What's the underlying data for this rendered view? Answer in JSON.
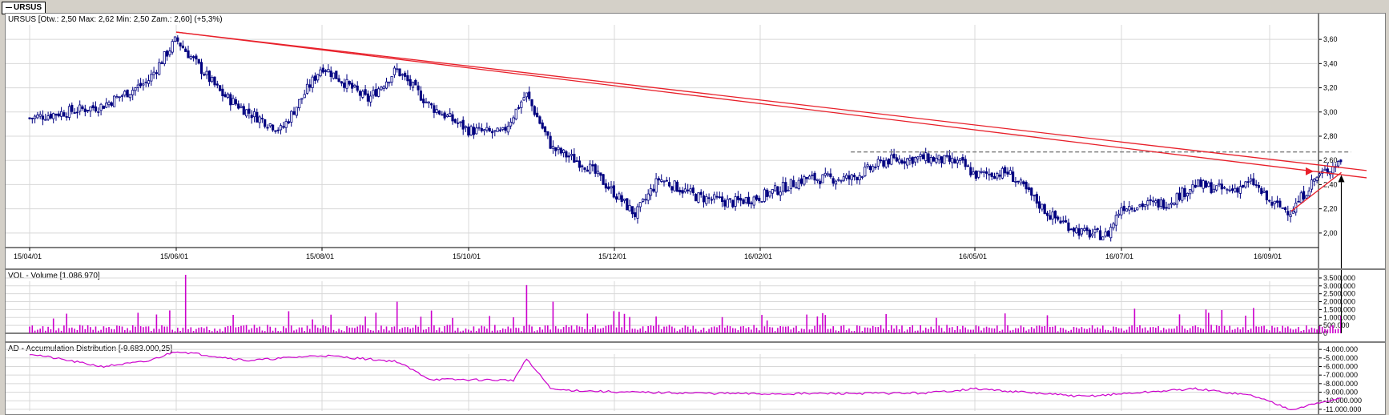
{
  "tab": {
    "label": "URSUS"
  },
  "colors": {
    "candle_up": "#ffffff",
    "candle_down": "#000080",
    "trendline": "#e8202a",
    "volume": "#cc00cc",
    "ad_line": "#cc00cc",
    "grid": "#d8d8d8",
    "dashed_resistance": "#808080",
    "arrow": "#000000"
  },
  "icons": {
    "red_arrow": "arrow-right-icon",
    "up_arrow": "arrow-up-icon"
  },
  "price_panel": {
    "header": "URSUS [Otw.: 2,50  Max: 2,62  Min: 2,50  Zam.: 2,60] (+5,3%)",
    "y_ticks": [
      "3,60",
      "3,40",
      "3,20",
      "3,00",
      "2,80",
      "2,60",
      "2,40",
      "2,20",
      "2,00"
    ]
  },
  "x_axis": {
    "ticks": [
      "15/04/01",
      "15/06/01",
      "15/08/01",
      "15/10/01",
      "15/12/01",
      "16/02/01",
      "16/05/01",
      "16/07/01",
      "16/09/01"
    ]
  },
  "volume_panel": {
    "header": "VOL - Volume [1.086.970]",
    "y_ticks": [
      "3.500.000",
      "3.000.000",
      "2.500.000",
      "2.000.000",
      "1.500.000",
      "1.000.000",
      "500.000",
      "0"
    ]
  },
  "ad_panel": {
    "header": "AD - Accumulation Distribution [-9.683.000,25]",
    "y_ticks": [
      "-4.000.000",
      "-5.000.000",
      "-6.000.000",
      "-7.000.000",
      "-8.000.000",
      "-9.000.000",
      "-10.000.000",
      "-11.000.000"
    ]
  },
  "chart_data": [
    {
      "type": "candlestick",
      "title": "URSUS",
      "ylim": [
        1.88,
        3.72
      ],
      "grid": true,
      "x_ticks": [
        "15/04/01",
        "15/06/01",
        "15/08/01",
        "15/10/01",
        "15/12/01",
        "16/02/01",
        "16/05/01",
        "16/07/01",
        "16/09/01"
      ],
      "close_series": [
        {
          "date": "15/04/01",
          "close": 2.95
        },
        {
          "date": "15/05/01",
          "close": 3.05
        },
        {
          "date": "15/05/20",
          "close": 3.25
        },
        {
          "date": "15/06/01",
          "close": 3.6
        },
        {
          "date": "15/06/20",
          "close": 3.15
        },
        {
          "date": "15/07/01",
          "close": 3.0
        },
        {
          "date": "15/07/15",
          "close": 2.85
        },
        {
          "date": "15/08/01",
          "close": 3.38
        },
        {
          "date": "15/08/20",
          "close": 3.1
        },
        {
          "date": "15/09/01",
          "close": 3.35
        },
        {
          "date": "15/09/15",
          "close": 3.05
        },
        {
          "date": "15/10/01",
          "close": 2.85
        },
        {
          "date": "15/10/15",
          "close": 2.82
        },
        {
          "date": "15/10/25",
          "close": 3.15
        },
        {
          "date": "15/11/05",
          "close": 2.7
        },
        {
          "date": "15/11/20",
          "close": 2.55
        },
        {
          "date": "15/12/05",
          "close": 2.25
        },
        {
          "date": "15/12/10",
          "close": 2.15
        },
        {
          "date": "15/12/20",
          "close": 2.45
        },
        {
          "date": "16/01/05",
          "close": 2.3
        },
        {
          "date": "16/01/20",
          "close": 2.25
        },
        {
          "date": "16/02/01",
          "close": 2.3
        },
        {
          "date": "16/02/20",
          "close": 2.45
        },
        {
          "date": "16/03/10",
          "close": 2.45
        },
        {
          "date": "16/03/25",
          "close": 2.6
        },
        {
          "date": "16/04/10",
          "close": 2.62
        },
        {
          "date": "16/04/25",
          "close": 2.58
        },
        {
          "date": "16/05/01",
          "close": 2.48
        },
        {
          "date": "16/05/15",
          "close": 2.5
        },
        {
          "date": "16/06/01",
          "close": 2.15
        },
        {
          "date": "16/06/15",
          "close": 2.0
        },
        {
          "date": "16/06/25",
          "close": 1.98
        },
        {
          "date": "16/07/01",
          "close": 2.22
        },
        {
          "date": "16/07/20",
          "close": 2.25
        },
        {
          "date": "16/08/01",
          "close": 2.4
        },
        {
          "date": "16/08/15",
          "close": 2.35
        },
        {
          "date": "16/08/25",
          "close": 2.42
        },
        {
          "date": "16/09/01",
          "close": 2.25
        },
        {
          "date": "16/09/10",
          "close": 2.18
        },
        {
          "date": "16/09/20",
          "close": 2.45
        },
        {
          "date": "16/10/01",
          "close": 2.6
        }
      ],
      "trendlines": [
        {
          "from": [
            "15/06/01",
            3.66
          ],
          "to": [
            "16/10/10",
            2.46
          ]
        },
        {
          "from": [
            "15/06/01",
            3.66
          ],
          "to": [
            "16/10/10",
            2.52
          ]
        },
        {
          "from": [
            "16/09/10",
            2.18
          ],
          "to": [
            "16/10/01",
            2.5
          ]
        }
      ],
      "resistance": {
        "value": 2.67,
        "from": "16/03/10",
        "to": "16/10/05",
        "style": "dashed"
      }
    },
    {
      "type": "bar",
      "title": "VOL - Volume [1.086.970]",
      "ylim": [
        0,
        3700000
      ],
      "spikes": [
        {
          "date": "15/06/05",
          "value": 3800000
        },
        {
          "date": "15/10/25",
          "value": 3050000
        },
        {
          "date": "15/11/05",
          "value": 2000000
        },
        {
          "date": "15/09/01",
          "value": 2000000
        },
        {
          "date": "16/08/25",
          "value": 1600000
        },
        {
          "date": "16/10/01",
          "value": 1087000
        }
      ]
    },
    {
      "type": "line",
      "title": "AD - Accumulation Distribution [-9.683.000,25]",
      "ylim": [
        -11200000,
        -3800000
      ],
      "points": [
        {
          "date": "15/04/01",
          "value": -4500000
        },
        {
          "date": "15/05/01",
          "value": -6000000
        },
        {
          "date": "15/05/20",
          "value": -5400000
        },
        {
          "date": "15/06/01",
          "value": -4200000
        },
        {
          "date": "15/07/01",
          "value": -5300000
        },
        {
          "date": "15/08/01",
          "value": -4700000
        },
        {
          "date": "15/09/01",
          "value": -5400000
        },
        {
          "date": "15/09/15",
          "value": -7500000
        },
        {
          "date": "15/10/20",
          "value": -7600000
        },
        {
          "date": "15/10/25",
          "value": -5100000
        },
        {
          "date": "15/11/05",
          "value": -8700000
        },
        {
          "date": "15/12/05",
          "value": -9000000
        },
        {
          "date": "16/02/01",
          "value": -9200000
        },
        {
          "date": "16/04/10",
          "value": -9100000
        },
        {
          "date": "16/05/01",
          "value": -8600000
        },
        {
          "date": "16/06/15",
          "value": -9500000
        },
        {
          "date": "16/08/01",
          "value": -8600000
        },
        {
          "date": "16/08/25",
          "value": -9400000
        },
        {
          "date": "16/09/10",
          "value": -11000000
        },
        {
          "date": "16/10/01",
          "value": -9683000
        }
      ]
    }
  ]
}
